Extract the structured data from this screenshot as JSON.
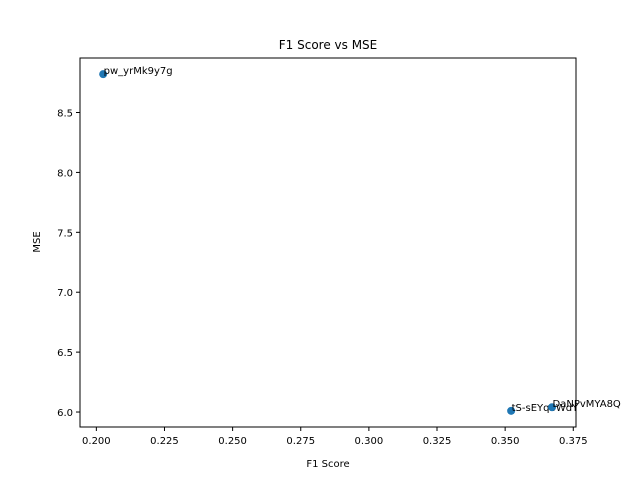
{
  "chart_data": {
    "type": "scatter",
    "title": "F1 Score vs MSE",
    "xlabel": "F1 Score",
    "ylabel": "MSE",
    "xlim": [
      0.194,
      0.376
    ],
    "ylim": [
      5.875,
      8.955
    ],
    "grid": false,
    "legend": "none",
    "marker_color": "#1f77b4",
    "xticks": [
      0.2,
      0.225,
      0.25,
      0.275,
      0.3,
      0.325,
      0.35,
      0.375
    ],
    "xtick_labels": [
      "0.200",
      "0.225",
      "0.250",
      "0.275",
      "0.300",
      "0.325",
      "0.350",
      "0.375"
    ],
    "yticks": [
      6.0,
      6.5,
      7.0,
      7.5,
      8.0,
      8.5
    ],
    "ytick_labels": [
      "6.0",
      "6.5",
      "7.0",
      "7.5",
      "8.0",
      "8.5"
    ],
    "points": [
      {
        "label": "pw_yrMk9y7g",
        "x": 0.2025,
        "y": 8.82
      },
      {
        "label": "tS-sEYqbWdY",
        "x": 0.3522,
        "y": 6.01
      },
      {
        "label": "DaNPvMYA8Q",
        "x": 0.3672,
        "y": 6.04
      }
    ]
  }
}
